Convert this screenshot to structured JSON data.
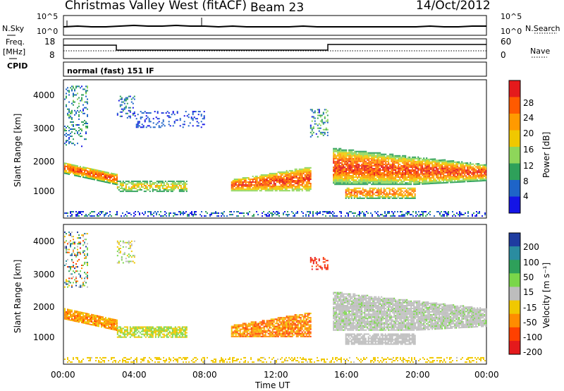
{
  "header": {
    "station": "Christmas Valley West (fitACF)",
    "beam": "Beam 23",
    "date": "14/Oct/2012"
  },
  "left_labels": {
    "nsky": "N.Sky",
    "freq": "Freq.",
    "freq_unit": "[MHz]",
    "cpid": "CPID"
  },
  "right_labels": {
    "nsearch": "N.Search",
    "nave": "Nave"
  },
  "noise_panel": {
    "left_ticks": [
      "10^5",
      "10^0"
    ],
    "right_ticks": [
      "10^5",
      "10^0"
    ]
  },
  "freq_panel": {
    "left_ticks": [
      "18",
      "8"
    ],
    "right_ticks": [
      "60",
      "0"
    ]
  },
  "cpid_text": "normal (fast) 151 IF",
  "xaxis": {
    "label": "Time UT",
    "ticks": [
      "00:00",
      "04:00",
      "08:00",
      "12:00",
      "16:00",
      "20:00",
      "00:00"
    ]
  },
  "power_panel": {
    "ylabel": "Slant Range [km]",
    "yticks": [
      "4000",
      "3000",
      "2000",
      "1000"
    ],
    "cbar_label": "Power [dB]",
    "cbar_ticks": [
      "28",
      "24",
      "20",
      "16",
      "12",
      "8",
      "4"
    ],
    "cbar_colors": [
      "#e41a1c",
      "#ff5a00",
      "#ff9a00",
      "#f0c800",
      "#8ed65a",
      "#2ea05a",
      "#1e64c8",
      "#1414e6"
    ]
  },
  "velocity_panel": {
    "ylabel": "Slant Range [km]",
    "yticks": [
      "4000",
      "3000",
      "2000",
      "1000"
    ],
    "cbar_label": "Velocity [m s⁻¹]",
    "cbar_ticks": [
      "200",
      "100",
      "50",
      "15",
      "-15",
      "-50",
      "-100",
      "-200"
    ],
    "cbar_colors": [
      "#1e3ca0",
      "#2a8ca0",
      "#2ea05a",
      "#7ad64a",
      "#bdbdbd",
      "#f0c800",
      "#ff8c00",
      "#ff4000",
      "#e41a1c"
    ]
  },
  "chart_data": [
    {
      "type": "line",
      "title": "Christmas Valley West (fitACF) Beam 23 14/Oct/2012",
      "series": [
        {
          "name": "N.Sky",
          "x_hours": [
            0,
            4,
            8,
            12,
            16,
            20,
            24
          ],
          "values": [
            100,
            100,
            100,
            100,
            100,
            100,
            100
          ]
        },
        {
          "name": "N.Search"
        }
      ],
      "ylim": [
        "10^0",
        "10^5"
      ]
    },
    {
      "type": "line",
      "series": [
        {
          "name": "Freq.",
          "x_hours": [
            0,
            3,
            3,
            15,
            15,
            24
          ],
          "values": [
            14.5,
            14.5,
            10.5,
            10.5,
            14.5,
            14.5
          ]
        },
        {
          "name": "Nave"
        }
      ],
      "ylim": [
        8,
        18
      ],
      "y2lim": [
        0,
        60
      ]
    },
    {
      "type": "heatmap",
      "ylabel": "Slant Range [km]",
      "xlabel": "Time UT",
      "xlim": [
        0,
        24
      ],
      "ylim": [
        180,
        4500
      ],
      "colorbar": {
        "label": "Power [dB]",
        "ticks": [
          4,
          8,
          12,
          16,
          20,
          24,
          28
        ]
      },
      "regions": [
        {
          "t0": 0.0,
          "t1": 3.0,
          "r0": 1500,
          "r1": 1900,
          "level": 24
        },
        {
          "t0": 3.0,
          "t1": 7.0,
          "r0": 950,
          "r1": 1350,
          "level": 16
        },
        {
          "t0": 9.5,
          "t1": 14.0,
          "r0": 1000,
          "r1": 1700,
          "level": 26
        },
        {
          "t0": 15.3,
          "t1": 24.0,
          "r0": 1300,
          "r1": 2300,
          "level": 22
        },
        {
          "t0": 16.0,
          "t1": 20.0,
          "r0": 750,
          "r1": 1100,
          "level": 20
        }
      ]
    },
    {
      "type": "heatmap",
      "ylabel": "Slant Range [km]",
      "xlabel": "Time UT",
      "xlim": [
        0,
        24
      ],
      "ylim": [
        180,
        4500
      ],
      "colorbar": {
        "label": "Velocity [m s⁻¹]",
        "ticks": [
          -200,
          -100,
          -50,
          -15,
          15,
          50,
          100,
          200
        ]
      },
      "regions": [
        {
          "t0": 0.0,
          "t1": 3.0,
          "r0": 1500,
          "r1": 1900,
          "value": -75
        },
        {
          "t0": 3.0,
          "t1": 7.0,
          "r0": 950,
          "r1": 1350,
          "value": -60
        },
        {
          "t0": 9.5,
          "t1": 14.0,
          "r0": 1000,
          "r1": 1700,
          "value": -90
        },
        {
          "t0": 15.3,
          "t1": 24.0,
          "r0": 1300,
          "r1": 2400,
          "value": 0
        },
        {
          "t0": 16.0,
          "t1": 20.0,
          "r0": 750,
          "r1": 1100,
          "value": 0
        }
      ]
    }
  ]
}
